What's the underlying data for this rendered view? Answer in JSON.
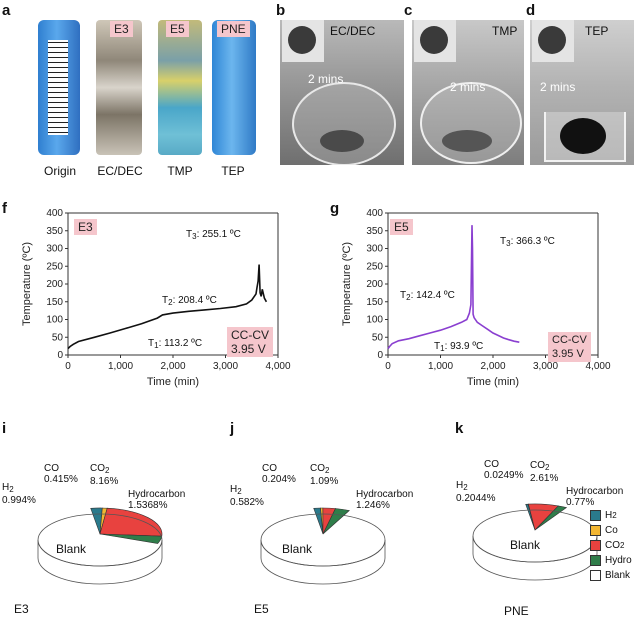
{
  "panels": {
    "a": {
      "letter": "a",
      "captions": [
        "Origin",
        "EC/DEC",
        "TMP",
        "TEP"
      ],
      "tags": [
        "E3",
        "E5",
        "PNE"
      ]
    },
    "b": {
      "letter": "b",
      "label": "EC/DEC",
      "time": "2 mins"
    },
    "c": {
      "letter": "c",
      "label": "TMP",
      "time": "2 mins"
    },
    "d": {
      "letter": "d",
      "label": "TEP",
      "time": "2 mins"
    },
    "f": {
      "letter": "f",
      "tag": "E3",
      "mode": "CC-CV",
      "voltage": "3.95 V",
      "annotations": [
        {
          "name": "T",
          "sub": "3",
          "text": ": 255.1 ºC"
        },
        {
          "name": "T",
          "sub": "2",
          "text": ": 208.4 ºC"
        },
        {
          "name": "T",
          "sub": "1",
          "text": ": 113.2 ºC"
        }
      ]
    },
    "g": {
      "letter": "g",
      "tag": "E5",
      "mode": "CC-CV",
      "voltage": "3.95 V",
      "annotations": [
        {
          "name": "T",
          "sub": "3",
          "text": ": 366.3 ºC"
        },
        {
          "name": "T",
          "sub": "2",
          "text": ": 142.4 ºC"
        },
        {
          "name": "T",
          "sub": "1",
          "text": ": 93.9 ºC"
        }
      ]
    },
    "i": {
      "letter": "i",
      "caption": "E3",
      "center": "Blank",
      "labels": {
        "co": "CO",
        "co_val": "0.415%",
        "h2": "H",
        "h2_val": "0.994%",
        "co2": "CO",
        "co2_val": "8.16%",
        "hc": "Hydrocarbon",
        "hc_val": "1.5368%"
      }
    },
    "j": {
      "letter": "j",
      "caption": "E5",
      "center": "Blank",
      "labels": {
        "co": "CO",
        "co_val": "0.204%",
        "h2": "H",
        "h2_val": "0.582%",
        "co2": "CO",
        "co2_val": "1.09%",
        "hc": "Hydrocarbon",
        "hc_val": "1.246%"
      }
    },
    "k": {
      "letter": "k",
      "caption": "PNE",
      "center": "Blank",
      "labels": {
        "co": "CO",
        "co_val": "0.0249%",
        "h2": "H",
        "h2_val": "0.2044%",
        "co2": "CO",
        "co2_val": "2.61%",
        "hc": "Hydrocarbon",
        "hc_val": "0.77%"
      }
    }
  },
  "legend": [
    {
      "label": "H",
      "sub": "2",
      "color": "#2a7a8c"
    },
    {
      "label": "Co",
      "sub": "",
      "color": "#f2b632"
    },
    {
      "label": "CO",
      "sub": "2",
      "color": "#e8423f"
    },
    {
      "label": "Hydro",
      "sub": "",
      "color": "#2f7d4a"
    },
    {
      "label": "Blank",
      "sub": "",
      "color": "#ffffff"
    }
  ],
  "chart_data": [
    {
      "type": "line",
      "panel": "f",
      "xlabel": "Time (min)",
      "ylabel": "Temperature (ºC)",
      "xlim": [
        0,
        4000
      ],
      "ylim": [
        0,
        400
      ],
      "xticks": [
        "0",
        "1,000",
        "2,000",
        "3,000",
        "4,000"
      ],
      "yticks": [
        "0",
        "50",
        "100",
        "150",
        "200",
        "250",
        "300",
        "350",
        "400"
      ],
      "series": [
        {
          "color": "#111111",
          "x": [
            0,
            40,
            100,
            200,
            500,
            800,
            1100,
            1400,
            1700,
            1800,
            2000,
            2300,
            2600,
            2900,
            3200,
            3400,
            3500,
            3580,
            3600,
            3620,
            3640,
            3660,
            3680,
            3700,
            3740,
            3780
          ],
          "y": [
            18,
            24,
            30,
            38,
            50,
            62,
            75,
            88,
            104,
            113,
            118,
            123,
            127,
            131,
            136,
            144,
            155,
            172,
            190,
            208,
            255,
            175,
            165,
            185,
            160,
            150
          ]
        }
      ]
    },
    {
      "type": "line",
      "panel": "g",
      "xlabel": "Time (min)",
      "ylabel": "Temperature (ºC)",
      "xlim": [
        0,
        4000
      ],
      "ylim": [
        0,
        400
      ],
      "xticks": [
        "0",
        "1,000",
        "2,000",
        "3,000",
        "4,000"
      ],
      "yticks": [
        "0",
        "50",
        "100",
        "150",
        "200",
        "250",
        "300",
        "350",
        "400"
      ],
      "series": [
        {
          "color": "#8a3fd0",
          "x": [
            0,
            30,
            80,
            200,
            400,
            600,
            800,
            1000,
            1200,
            1400,
            1500,
            1550,
            1580,
            1600,
            1610,
            1620,
            1640,
            1700,
            1800,
            1900,
            2000,
            2100,
            2200,
            2300,
            2400,
            2500
          ],
          "y": [
            18,
            24,
            32,
            40,
            46,
            54,
            62,
            70,
            80,
            92,
            100,
            118,
            142,
            366,
            300,
            115,
            105,
            92,
            82,
            72,
            62,
            55,
            48,
            43,
            39,
            36
          ]
        }
      ]
    },
    {
      "type": "pie",
      "panel": "i",
      "categories": [
        "H2",
        "CO",
        "CO2",
        "Hydrocarbon",
        "Blank"
      ],
      "values": [
        0.994,
        0.415,
        8.16,
        1.5368,
        88.8942
      ]
    },
    {
      "type": "pie",
      "panel": "j",
      "categories": [
        "H2",
        "CO",
        "CO2",
        "Hydrocarbon",
        "Blank"
      ],
      "values": [
        0.582,
        0.204,
        1.09,
        1.246,
        96.878
      ]
    },
    {
      "type": "pie",
      "panel": "k",
      "categories": [
        "H2",
        "CO",
        "CO2",
        "Hydrocarbon",
        "Blank"
      ],
      "values": [
        0.2044,
        0.0249,
        2.61,
        0.77,
        96.3907
      ]
    }
  ]
}
